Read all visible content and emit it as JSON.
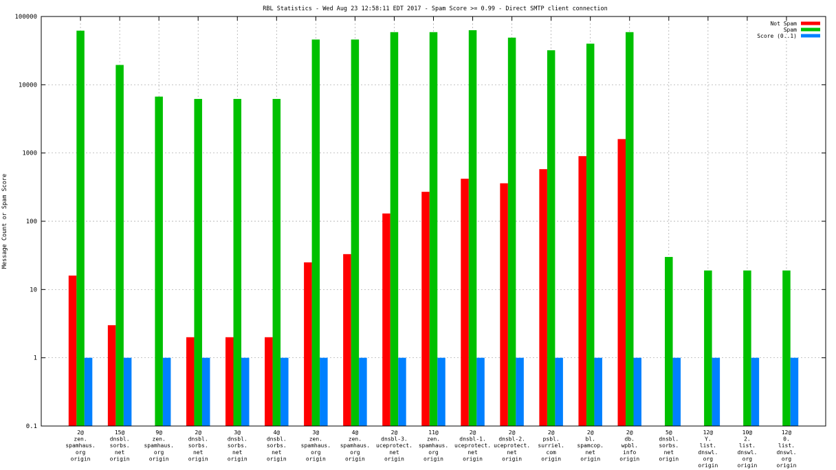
{
  "chart_data": {
    "type": "bar",
    "title": "RBL Statistics - Wed Aug 23 12:58:11 EDT 2017 - Spam Score >= 0.99 - Direct SMTP client connection",
    "xlabel": "",
    "ylabel": "Message Count or Spam Score",
    "yscale": "log",
    "ylim": [
      0.1,
      100000
    ],
    "yticks": [
      "0.1",
      "1",
      "10",
      "100",
      "1000",
      "10000",
      "100000"
    ],
    "grid": true,
    "legend_position": "top-right",
    "categories": [
      [
        "2@",
        "zen.",
        "spamhaus.",
        "org",
        "origin"
      ],
      [
        "15@",
        "dnsbl.",
        "sorbs.",
        "net",
        "origin"
      ],
      [
        "9@",
        "zen.",
        "spamhaus.",
        "org",
        "origin"
      ],
      [
        "2@",
        "dnsbl.",
        "sorbs.",
        "net",
        "origin"
      ],
      [
        "3@",
        "dnsbl.",
        "sorbs.",
        "net",
        "origin"
      ],
      [
        "4@",
        "dnsbl.",
        "sorbs.",
        "net",
        "origin"
      ],
      [
        "3@",
        "zen.",
        "spamhaus.",
        "org",
        "origin"
      ],
      [
        "4@",
        "zen.",
        "spamhaus.",
        "org",
        "origin"
      ],
      [
        "2@",
        "dnsbl-3.",
        "uceprotect.",
        "net",
        "origin"
      ],
      [
        "11@",
        "zen.",
        "spamhaus.",
        "org",
        "origin"
      ],
      [
        "2@",
        "dnsbl-1.",
        "uceprotect.",
        "net",
        "origin"
      ],
      [
        "2@",
        "dnsbl-2.",
        "uceprotect.",
        "net",
        "origin"
      ],
      [
        "2@",
        "psbl.",
        "surriel.",
        "com",
        "origin"
      ],
      [
        "2@",
        "bl.",
        "spamcop.",
        "net",
        "origin"
      ],
      [
        "2@",
        "db.",
        "wpbl.",
        "info",
        "origin"
      ],
      [
        "5@",
        "dnsbl.",
        "sorbs.",
        "net",
        "origin"
      ],
      [
        "12@",
        "Y.",
        "list.",
        "dnswl.",
        "org",
        "origin"
      ],
      [
        "10@",
        "2.",
        "list.",
        "dnswl.",
        "org",
        "origin"
      ],
      [
        "12@",
        "0.",
        "list.",
        "dnswl.",
        "org",
        "origin"
      ]
    ],
    "series": [
      {
        "name": "Not Spam",
        "color": "#ff0000",
        "values": [
          16,
          3,
          null,
          2,
          2,
          2,
          25,
          33,
          130,
          270,
          420,
          360,
          580,
          900,
          1600,
          null,
          null,
          null,
          null
        ]
      },
      {
        "name": "Spam",
        "color": "#00c000",
        "values": [
          62000,
          19500,
          6700,
          6200,
          6200,
          6200,
          46000,
          46000,
          59000,
          59000,
          63000,
          49000,
          32000,
          40000,
          59000,
          30,
          19,
          19,
          19
        ]
      },
      {
        "name": "Score (0..1)",
        "color": "#0080ff",
        "values": [
          1,
          1,
          1,
          1,
          1,
          1,
          1,
          1,
          1,
          1,
          1,
          1,
          1,
          1,
          1,
          1,
          1,
          1,
          1
        ]
      }
    ]
  }
}
